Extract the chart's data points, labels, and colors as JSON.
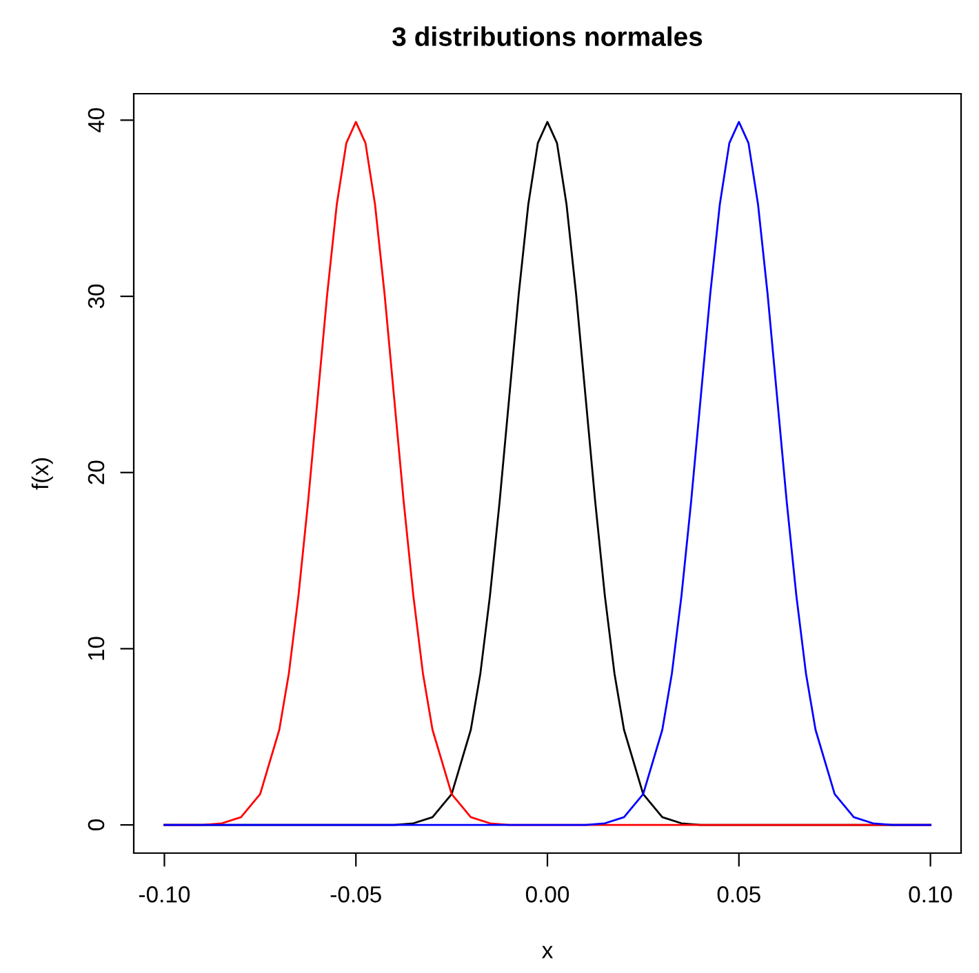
{
  "chart_data": {
    "type": "line",
    "title": "3 distributions normales",
    "xlabel": "x",
    "ylabel": "f(x)",
    "series": [
      {
        "color": "#000000",
        "x": [
          -0.1,
          -0.04,
          -0.035,
          -0.03,
          -0.025,
          -0.02,
          -0.0175,
          -0.015,
          -0.0125,
          -0.01,
          -0.0075,
          -0.005,
          -0.0025,
          0,
          0.0025,
          0.005,
          0.0075,
          0.01,
          0.0125,
          0.015,
          0.0175,
          0.02,
          0.025,
          0.03,
          0.035,
          0.04,
          0.1
        ],
        "values": [
          0,
          0,
          0.09,
          0.44,
          1.75,
          5.4,
          8.6,
          13.0,
          18.3,
          24.2,
          30.1,
          35.2,
          38.7,
          39.9,
          38.7,
          35.2,
          30.1,
          24.2,
          18.3,
          13.0,
          8.6,
          5.4,
          1.75,
          0.44,
          0.09,
          0,
          0
        ]
      },
      {
        "color": "#ff0000",
        "x": [
          -0.1,
          -0.09,
          -0.085,
          -0.08,
          -0.075,
          -0.07,
          -0.0675,
          -0.065,
          -0.0625,
          -0.06,
          -0.0575,
          -0.055,
          -0.0525,
          -0.05,
          -0.0475,
          -0.045,
          -0.0425,
          -0.04,
          -0.0375,
          -0.035,
          -0.0325,
          -0.03,
          -0.025,
          -0.02,
          -0.015,
          -0.01,
          0.1
        ],
        "values": [
          0,
          0,
          0.09,
          0.44,
          1.75,
          5.4,
          8.6,
          13.0,
          18.3,
          24.2,
          30.1,
          35.2,
          38.7,
          39.9,
          38.7,
          35.2,
          30.1,
          24.2,
          18.3,
          13.0,
          8.6,
          5.4,
          1.75,
          0.44,
          0.09,
          0,
          0
        ]
      },
      {
        "color": "#0000ff",
        "x": [
          -0.1,
          0.01,
          0.015,
          0.02,
          0.025,
          0.03,
          0.0325,
          0.035,
          0.0375,
          0.04,
          0.0425,
          0.045,
          0.0475,
          0.05,
          0.0525,
          0.055,
          0.0575,
          0.06,
          0.0625,
          0.065,
          0.0675,
          0.07,
          0.075,
          0.08,
          0.085,
          0.09,
          0.1
        ],
        "values": [
          0,
          0,
          0.09,
          0.44,
          1.75,
          5.4,
          8.6,
          13.0,
          18.3,
          24.2,
          30.1,
          35.2,
          38.7,
          39.9,
          38.7,
          35.2,
          30.1,
          24.2,
          18.3,
          13.0,
          8.6,
          5.4,
          1.75,
          0.44,
          0.09,
          0,
          0
        ]
      }
    ],
    "xlim": [
      -0.108,
      0.108
    ],
    "ylim": [
      -1.6,
      41.5
    ],
    "xticks": [
      {
        "value": -0.1,
        "label": "-0.10"
      },
      {
        "value": -0.05,
        "label": "-0.05"
      },
      {
        "value": 0,
        "label": "0.00"
      },
      {
        "value": 0.05,
        "label": "0.05"
      },
      {
        "value": 0.1,
        "label": "0.10"
      }
    ],
    "yticks": [
      0,
      10,
      20,
      30,
      40
    ],
    "grid": false,
    "legend": false,
    "marker": "none",
    "line_style": "solid"
  }
}
